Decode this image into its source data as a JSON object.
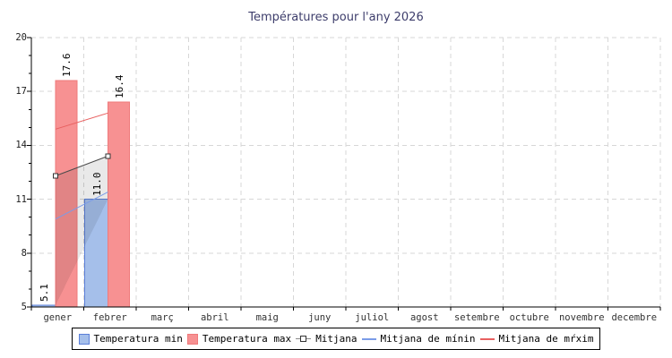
{
  "chart_data": {
    "type": "bar",
    "title": "Températures pour l'any 2026",
    "months": [
      "gener",
      "febrer",
      "març",
      "abril",
      "maig",
      "juny",
      "juliol",
      "agost",
      "setembre",
      "octubre",
      "novembre",
      "decembre"
    ],
    "y_ticks": [
      5,
      8,
      11,
      14,
      17,
      20
    ],
    "ylim": [
      5,
      20
    ],
    "y_minor_step": 1,
    "grid_color": "#d7d7d7",
    "axis_color": "#000000",
    "title_color": "#3d3d6b",
    "legend_position": "bottom-center",
    "grid_style": "dashed",
    "series": [
      {
        "name": "Temperatura min",
        "type": "bar",
        "color": "#a5bfea",
        "border": "#5b7fd8",
        "values": [
          5.1,
          11.0,
          null,
          null,
          null,
          null,
          null,
          null,
          null,
          null,
          null,
          null
        ],
        "labels": [
          "5.1",
          "11.0"
        ]
      },
      {
        "name": "Temperatura max",
        "type": "bar",
        "color": "#f79192",
        "border": "#ef7a7b",
        "values": [
          17.6,
          16.4,
          null,
          null,
          null,
          null,
          null,
          null,
          null,
          null,
          null,
          null
        ],
        "labels": [
          "17.6",
          "16.4"
        ]
      },
      {
        "name": "Mitjana",
        "type": "line-marker",
        "color": "#4a4a4a",
        "values": [
          12.3,
          13.4,
          null,
          null,
          null,
          null,
          null,
          null,
          null,
          null,
          null,
          null
        ]
      },
      {
        "name": "Mitjana de mínin",
        "type": "line",
        "color": "#7b9ce8",
        "values": [
          9.9,
          11.4,
          null,
          null,
          null,
          null,
          null,
          null,
          null,
          null,
          null,
          null
        ]
      },
      {
        "name": "Mitjana de mŕxim",
        "type": "line",
        "color": "#e86060",
        "values": [
          14.9,
          15.8,
          null,
          null,
          null,
          null,
          null,
          null,
          null,
          null,
          null,
          null
        ]
      }
    ],
    "band": {
      "top_series": 2,
      "bottom_series": 0,
      "color": "rgba(0,0,0,0.085)"
    }
  }
}
